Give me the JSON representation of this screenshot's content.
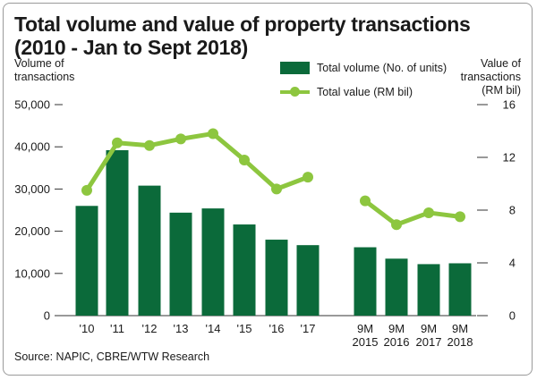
{
  "chart_data": {
    "type": "bar",
    "title": [
      "Total volume and value of property transactions",
      "(2010 - Jan to Sept 2018)"
    ],
    "left_axis_label": [
      "Volume of",
      "transactions"
    ],
    "right_axis_label": [
      "Value of",
      "transactions",
      "(RM bil)"
    ],
    "categories": [
      [
        "'10"
      ],
      [
        "'11"
      ],
      [
        "'12"
      ],
      [
        "'13"
      ],
      [
        "'14"
      ],
      [
        "'15"
      ],
      [
        "'16"
      ],
      [
        "'17"
      ],
      [
        "9M",
        "2015"
      ],
      [
        "9M",
        "2016"
      ],
      [
        "9M",
        "2017"
      ],
      [
        "9M",
        "2018"
      ]
    ],
    "series": [
      {
        "name": "Total volume (No. of units)",
        "type": "bar",
        "axis": "left",
        "color": "#0b6a3a",
        "values": [
          26000,
          39200,
          30800,
          24400,
          25400,
          21600,
          18000,
          16700,
          16200,
          13500,
          12200,
          12400
        ]
      },
      {
        "name": "Total value (RM bil)",
        "type": "line",
        "axis": "right",
        "color": "#8dc63f",
        "segments": [
          {
            "start": 0,
            "values": [
              9.5,
              13.1,
              12.9,
              13.4,
              13.8,
              11.8,
              9.6,
              10.5
            ]
          },
          {
            "start": 8,
            "values": [
              8.7,
              6.9,
              7.8,
              7.5
            ]
          }
        ]
      }
    ],
    "left_axis": {
      "ylim": [
        0,
        50000
      ],
      "ticks": [
        "0",
        "10,000",
        "20,000",
        "30,000",
        "40,000",
        "50,000"
      ]
    },
    "right_axis": {
      "ylim": [
        0,
        16
      ],
      "ticks": [
        "0",
        "4",
        "8",
        "12",
        "16"
      ]
    },
    "legend_position": "top-right",
    "source": "Source: NAPIC, CBRE/WTW Research"
  }
}
